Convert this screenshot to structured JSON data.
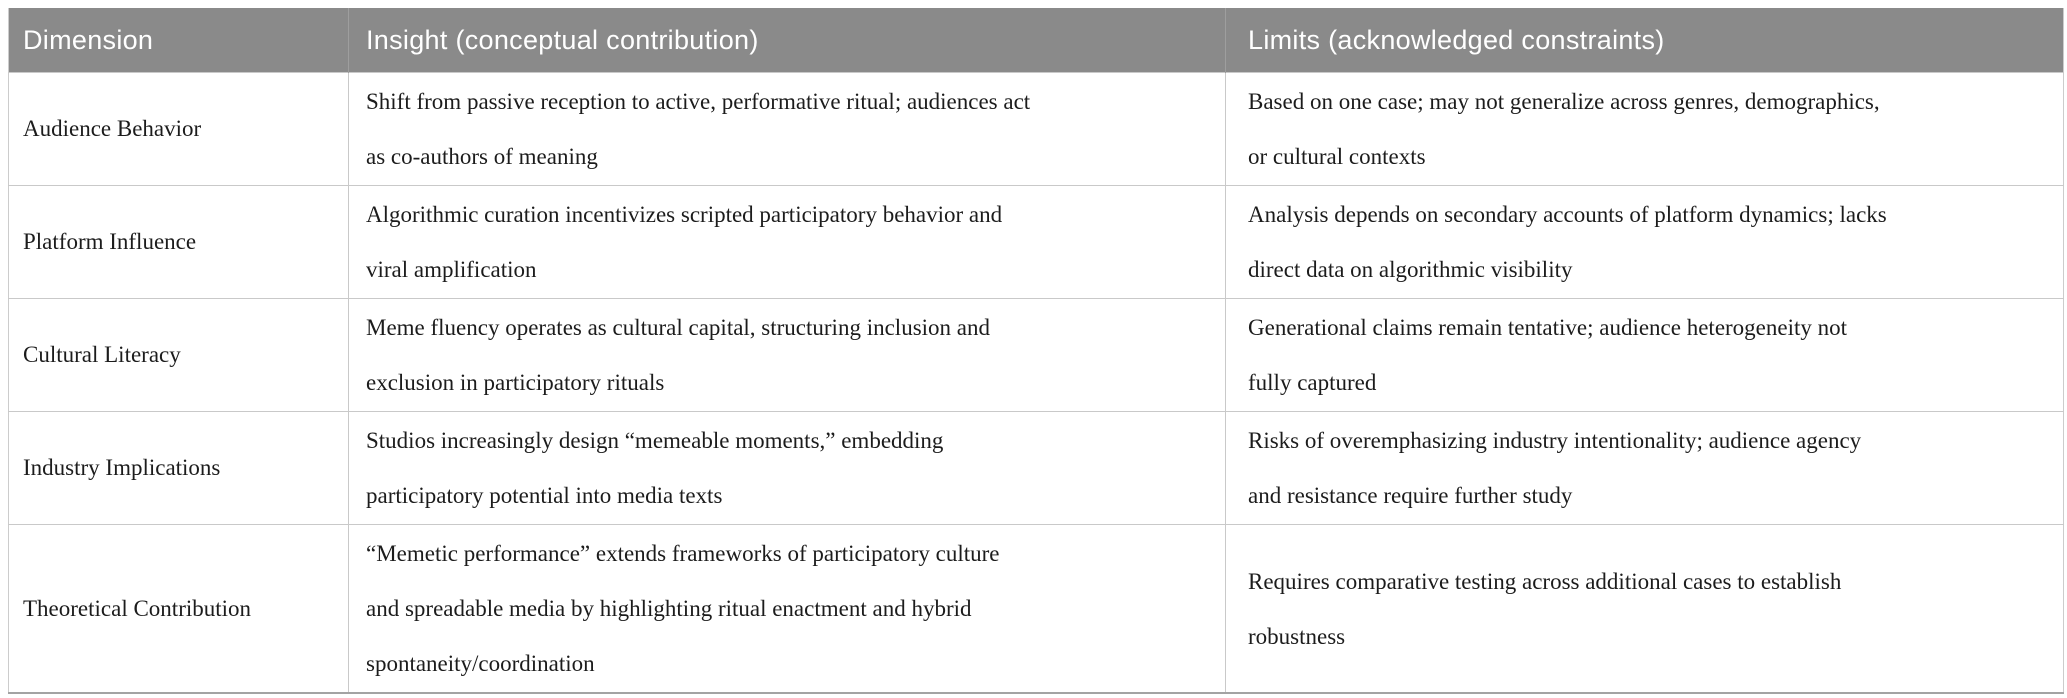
{
  "table": {
    "columns": [
      {
        "label": "Dimension"
      },
      {
        "label": "Insight (conceptual contribution)"
      },
      {
        "label": "Limits (acknowledged constraints)"
      }
    ],
    "rows": [
      {
        "dimension": "Audience Behavior",
        "insight": "Shift from passive reception to active, performative ritual; audiences act\nas co-authors of meaning",
        "limits": "Based on one case; may not generalize across genres, demographics,\nor cultural contexts"
      },
      {
        "dimension": "Platform Influence",
        "insight": "Algorithmic curation incentivizes scripted participatory behavior and\nviral amplification",
        "limits": "Analysis depends on secondary accounts of platform dynamics; lacks\ndirect data on algorithmic visibility"
      },
      {
        "dimension": "Cultural Literacy",
        "insight": "Meme fluency operates as cultural capital, structuring inclusion and\nexclusion in participatory rituals",
        "limits": "Generational claims remain tentative; audience heterogeneity not\nfully captured"
      },
      {
        "dimension": "Industry Implications",
        "insight": "Studios increasingly design “memeable moments,” embedding\nparticipatory potential into media texts",
        "limits": "Risks of overemphasizing industry intentionality; audience agency\nand resistance require further study"
      },
      {
        "dimension": "Theoretical Contribution",
        "insight": "“Memetic performance” extends frameworks of participatory culture\nand spreadable media by highlighting ritual enactment and hybrid\nspontaneity/coordination",
        "limits": "Requires comparative testing across additional cases to establish\nrobustness"
      }
    ],
    "colors": {
      "header_bg": "#8a8a8a",
      "header_text": "#ffffff",
      "body_text": "#1c1c1c",
      "grid_line": "#c9c9c9",
      "bottom_border": "#a3a3a3"
    }
  }
}
